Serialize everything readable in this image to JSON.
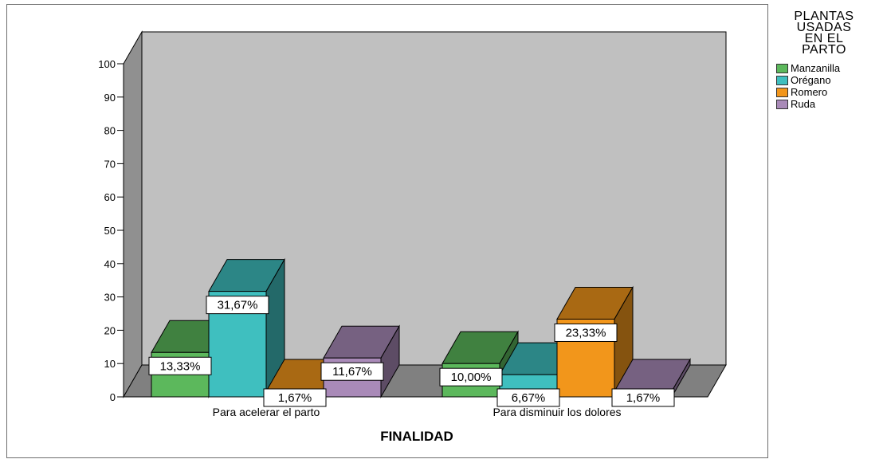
{
  "chart_data": {
    "type": "bar",
    "title": "",
    "xlabel": "FINALIDAD",
    "ylabel": "",
    "ylim": [
      0,
      100
    ],
    "yticks": [
      "0",
      "10",
      "20",
      "30",
      "40",
      "50",
      "60",
      "70",
      "80",
      "90",
      "100"
    ],
    "categories": [
      "Para acelerar el parto",
      "Para disminuir los dolores"
    ],
    "legend_title": [
      "PLANTAS",
      "USADAS",
      "EN EL",
      "PARTO"
    ],
    "legend_position": "right",
    "grid": false,
    "series": [
      {
        "name": "Manzanilla",
        "color": "#5cb85c",
        "values": [
          13.33,
          10.0
        ],
        "labels": [
          "13,33%",
          "10,00%"
        ]
      },
      {
        "name": "Orégano",
        "color": "#3fbfbf",
        "values": [
          31.67,
          6.67
        ],
        "labels": [
          "31,67%",
          "6,67%"
        ]
      },
      {
        "name": "Romero",
        "color": "#f2961b",
        "values": [
          1.67,
          23.33
        ],
        "labels": [
          "1,67%",
          "23,33%"
        ]
      },
      {
        "name": "Ruda",
        "color": "#a98ab8",
        "values": [
          11.67,
          1.67
        ],
        "labels": [
          "11,67%",
          "1,67%"
        ]
      }
    ],
    "wall_color": "#c0c0c0",
    "floor_color": "#808080",
    "side_wall_color": "#909090"
  }
}
